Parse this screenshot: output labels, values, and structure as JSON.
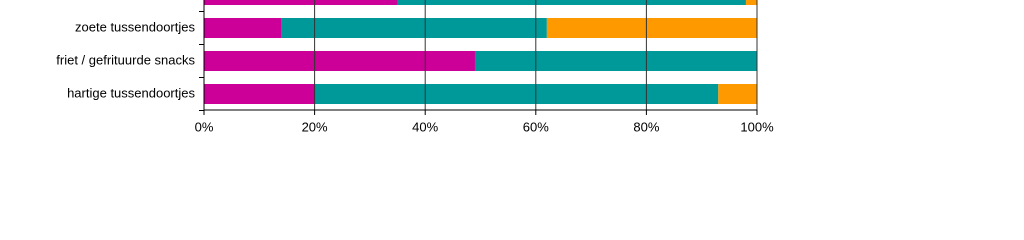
{
  "chart_data": {
    "type": "stacked-bar-horizontal",
    "categories": [
      null,
      "zoete tussendoortjes",
      "friet / gefrituurde snacks",
      "hartige tussendoortjes"
    ],
    "series": [
      {
        "color": "#cc0099",
        "values": [
          35,
          14,
          49,
          20
        ]
      },
      {
        "color": "#009999",
        "values": [
          63,
          48,
          51,
          73
        ]
      },
      {
        "color": "#ff9900",
        "values": [
          2,
          38,
          0,
          7
        ]
      }
    ],
    "xlim": [
      0,
      100
    ],
    "xticks": [
      {
        "value": 0,
        "label": "0%"
      },
      {
        "value": 20,
        "label": "20%"
      },
      {
        "value": 40,
        "label": "40%"
      },
      {
        "value": 60,
        "label": "60%"
      },
      {
        "value": 80,
        "label": "80%"
      },
      {
        "value": 100,
        "label": "100%"
      }
    ],
    "grid": true
  }
}
